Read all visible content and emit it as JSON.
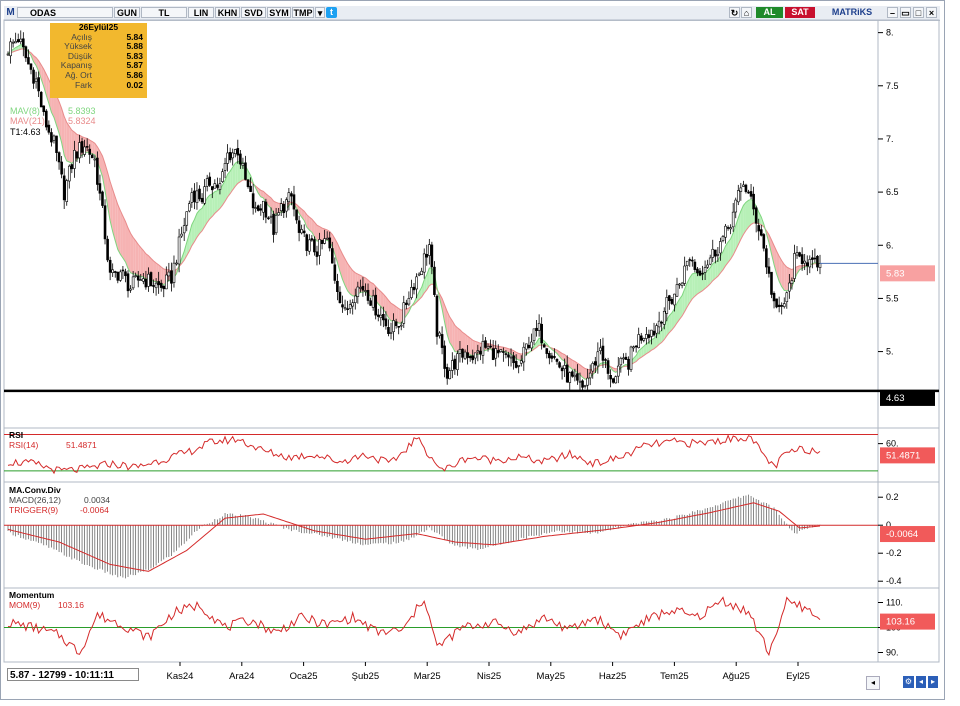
{
  "toolbar": {
    "logo": "M",
    "symbol": "ODAS",
    "period": "GUN",
    "currency": "TL",
    "scale": "LIN",
    "buttons": [
      "KHN",
      "SVD",
      "SYM",
      "TMP"
    ],
    "buy_label": "AL",
    "sell_label": "SAT",
    "brand": "MATRiKS"
  },
  "ohlc_box": {
    "date": "26Eylül25",
    "rows": [
      {
        "label": "Açılış",
        "value": "5.84"
      },
      {
        "label": "Yüksek",
        "value": "5.88"
      },
      {
        "label": "Düşük",
        "value": "5.83"
      },
      {
        "label": "Kapanış",
        "value": "5.87"
      },
      {
        "label": "Ağ. Ort",
        "value": "5.86"
      },
      {
        "label": "Fark",
        "value": "0.02"
      }
    ]
  },
  "status_bar": {
    "text": "5.87 - 12799 - 10:11:11"
  },
  "colors": {
    "up": "#000000",
    "down": "#000000",
    "band_up": "#b7f0b7",
    "band_down": "#f6b3b3",
    "mav_fast": "#7fd67f",
    "mav_slow": "#e88b8b",
    "rsi": "#d42a2a",
    "macd": "#000000",
    "trigger": "#d42a2a",
    "momentum": "#d42a2a",
    "ref_line": "#2a9d2a",
    "label_bg": "#f15a5a"
  },
  "chart_data": [
    {
      "type": "candlestick",
      "title": "ODAS",
      "x_tick_labels": [
        "Kas24",
        "Ara24",
        "Oca25",
        "Şub25",
        "Mar25",
        "Nis25",
        "May25",
        "Haz25",
        "Tem25",
        "Ağu25",
        "Eyl25"
      ],
      "y_ticks": [
        5,
        5.5,
        6,
        6.5,
        7,
        7.5,
        8
      ],
      "y_tick_labels": [
        "5.",
        "5.5",
        "6.",
        "6.5",
        "7.",
        "7.5",
        "8."
      ],
      "ylim": [
        4.3,
        8.1
      ],
      "series": [
        {
          "name": "MAV(8)",
          "last": "5.8393"
        },
        {
          "name": "MAV(21)",
          "last": "5.8324"
        }
      ],
      "horizontal_line": {
        "name": "T1",
        "value": 4.63,
        "label": "T1:4.63",
        "axis_label": "4.63"
      },
      "last_price": 5.83,
      "last_price_label": "5.83",
      "close_path": [
        [
          0,
          7.85
        ],
        [
          4,
          7.95
        ],
        [
          8,
          7.7
        ],
        [
          11,
          7.55
        ],
        [
          14,
          7.2
        ],
        [
          18,
          6.95
        ],
        [
          22,
          6.5
        ],
        [
          26,
          6.85
        ],
        [
          30,
          6.95
        ],
        [
          34,
          6.8
        ],
        [
          37,
          6.3
        ],
        [
          40,
          5.7
        ],
        [
          44,
          5.75
        ],
        [
          48,
          5.6
        ],
        [
          52,
          5.7
        ],
        [
          56,
          5.65
        ],
        [
          60,
          5.6
        ],
        [
          64,
          5.7
        ],
        [
          68,
          6.1
        ],
        [
          72,
          6.5
        ],
        [
          76,
          6.45
        ],
        [
          79,
          6.6
        ],
        [
          83,
          6.55
        ],
        [
          86,
          6.85
        ],
        [
          90,
          6.9
        ],
        [
          93,
          6.6
        ],
        [
          97,
          6.3
        ],
        [
          100,
          6.4
        ],
        [
          104,
          6.15
        ],
        [
          107,
          6.35
        ],
        [
          111,
          6.45
        ],
        [
          114,
          6.1
        ],
        [
          118,
          6.0
        ],
        [
          121,
          5.95
        ],
        [
          125,
          6.05
        ],
        [
          128,
          5.7
        ],
        [
          132,
          5.35
        ],
        [
          136,
          5.6
        ],
        [
          140,
          5.6
        ],
        [
          143,
          5.45
        ],
        [
          147,
          5.3
        ],
        [
          150,
          5.2
        ],
        [
          154,
          5.3
        ],
        [
          157,
          5.55
        ],
        [
          161,
          5.75
        ],
        [
          165,
          6.0
        ],
        [
          168,
          5.2
        ],
        [
          172,
          4.8
        ],
        [
          175,
          4.9
        ],
        [
          179,
          5.0
        ],
        [
          183,
          4.95
        ],
        [
          186,
          5.05
        ],
        [
          190,
          5.0
        ],
        [
          193,
          4.95
        ],
        [
          197,
          4.9
        ],
        [
          200,
          4.85
        ],
        [
          204,
          5.1
        ],
        [
          208,
          5.2
        ],
        [
          211,
          5.05
        ],
        [
          215,
          4.9
        ],
        [
          218,
          4.8
        ],
        [
          222,
          4.7
        ],
        [
          225,
          4.65
        ],
        [
          229,
          4.85
        ],
        [
          232,
          5.05
        ],
        [
          236,
          4.7
        ],
        [
          239,
          4.85
        ],
        [
          243,
          4.9
        ],
        [
          246,
          5.1
        ],
        [
          250,
          5.2
        ],
        [
          253,
          5.2
        ],
        [
          257,
          5.4
        ],
        [
          260,
          5.5
        ],
        [
          264,
          5.7
        ],
        [
          267,
          5.9
        ],
        [
          270,
          5.75
        ],
        [
          274,
          5.85
        ],
        [
          277,
          5.95
        ],
        [
          281,
          6.1
        ],
        [
          284,
          6.3
        ],
        [
          288,
          6.6
        ],
        [
          291,
          6.4
        ],
        [
          295,
          6.1
        ],
        [
          298,
          5.7
        ],
        [
          301,
          5.35
        ],
        [
          305,
          5.5
        ],
        [
          308,
          5.85
        ],
        [
          312,
          5.9
        ],
        [
          315,
          5.8
        ],
        [
          318,
          5.83
        ]
      ]
    },
    {
      "type": "line",
      "title": "RSI",
      "series": [
        {
          "name": "RSI(14)",
          "last": "51.4871"
        }
      ],
      "y_ticks": [
        60
      ],
      "y_tick_labels": [
        "60."
      ],
      "ylim": [
        20,
        75
      ],
      "reference_lines": [
        70,
        30
      ],
      "last_label": "51.4871",
      "path": [
        [
          0,
          40
        ],
        [
          10,
          38
        ],
        [
          20,
          30
        ],
        [
          30,
          32
        ],
        [
          40,
          38
        ],
        [
          50,
          34
        ],
        [
          60,
          42
        ],
        [
          70,
          50
        ],
        [
          80,
          62
        ],
        [
          90,
          65
        ],
        [
          100,
          52
        ],
        [
          110,
          45
        ],
        [
          120,
          48
        ],
        [
          130,
          40
        ],
        [
          140,
          48
        ],
        [
          150,
          38
        ],
        [
          160,
          66
        ],
        [
          170,
          30
        ],
        [
          180,
          45
        ],
        [
          190,
          42
        ],
        [
          200,
          45
        ],
        [
          210,
          40
        ],
        [
          220,
          48
        ],
        [
          230,
          38
        ],
        [
          240,
          45
        ],
        [
          250,
          58
        ],
        [
          260,
          62
        ],
        [
          270,
          60
        ],
        [
          280,
          64
        ],
        [
          290,
          68
        ],
        [
          300,
          34
        ],
        [
          305,
          50
        ],
        [
          312,
          54
        ],
        [
          318,
          51.49
        ]
      ]
    },
    {
      "type": "bar+line",
      "title": "MA.Conv.Div",
      "series": [
        {
          "name": "MACD(26,12)",
          "last": "0.0034"
        },
        {
          "name": "TRIGGER(9)",
          "last": "-0.0064"
        }
      ],
      "y_ticks": [
        0.2,
        0,
        -0.2,
        -0.4
      ],
      "y_tick_labels": [
        "0.2",
        "0",
        "-0.2",
        "-0.4"
      ],
      "ylim": [
        -0.42,
        0.28
      ],
      "last_label": "-0.0064",
      "macd_path": [
        [
          0,
          -0.05
        ],
        [
          15,
          -0.15
        ],
        [
          30,
          -0.28
        ],
        [
          45,
          -0.38
        ],
        [
          55,
          -0.32
        ],
        [
          65,
          -0.2
        ],
        [
          75,
          -0.02
        ],
        [
          85,
          0.08
        ],
        [
          95,
          0.06
        ],
        [
          110,
          -0.03
        ],
        [
          125,
          -0.08
        ],
        [
          140,
          -0.14
        ],
        [
          155,
          -0.12
        ],
        [
          165,
          -0.02
        ],
        [
          175,
          -0.15
        ],
        [
          185,
          -0.17
        ],
        [
          200,
          -0.1
        ],
        [
          215,
          -0.04
        ],
        [
          230,
          -0.06
        ],
        [
          245,
          0.01
        ],
        [
          260,
          0.05
        ],
        [
          275,
          0.13
        ],
        [
          290,
          0.22
        ],
        [
          300,
          0.12
        ],
        [
          308,
          -0.06
        ],
        [
          318,
          0.003
        ]
      ],
      "trigger_path": [
        [
          0,
          -0.03
        ],
        [
          20,
          -0.12
        ],
        [
          40,
          -0.28
        ],
        [
          55,
          -0.33
        ],
        [
          70,
          -0.18
        ],
        [
          85,
          0.05
        ],
        [
          100,
          0.08
        ],
        [
          120,
          -0.04
        ],
        [
          140,
          -0.1
        ],
        [
          160,
          -0.06
        ],
        [
          175,
          -0.12
        ],
        [
          190,
          -0.14
        ],
        [
          210,
          -0.08
        ],
        [
          235,
          -0.03
        ],
        [
          255,
          0.02
        ],
        [
          275,
          0.09
        ],
        [
          292,
          0.16
        ],
        [
          302,
          0.1
        ],
        [
          310,
          -0.02
        ],
        [
          318,
          -0.006
        ]
      ]
    },
    {
      "type": "line",
      "title": "Momentum",
      "series": [
        {
          "name": "MOM(9)",
          "last": "103.16"
        }
      ],
      "y_ticks": [
        110,
        100,
        90
      ],
      "y_tick_labels": [
        "110.",
        "100",
        "90."
      ],
      "ylim": [
        87,
        115
      ],
      "reference_lines": [
        100
      ],
      "last_label": "103.16",
      "path": [
        [
          0,
          102
        ],
        [
          10,
          100
        ],
        [
          20,
          97
        ],
        [
          28,
          90
        ],
        [
          35,
          105
        ],
        [
          45,
          101
        ],
        [
          55,
          96
        ],
        [
          65,
          106
        ],
        [
          75,
          109
        ],
        [
          85,
          100
        ],
        [
          95,
          103
        ],
        [
          105,
          98
        ],
        [
          115,
          104
        ],
        [
          125,
          101
        ],
        [
          135,
          104
        ],
        [
          145,
          98
        ],
        [
          155,
          99
        ],
        [
          163,
          112
        ],
        [
          168,
          92
        ],
        [
          178,
          100
        ],
        [
          190,
          102
        ],
        [
          200,
          98
        ],
        [
          210,
          104
        ],
        [
          220,
          99
        ],
        [
          230,
          104
        ],
        [
          240,
          97
        ],
        [
          250,
          103
        ],
        [
          260,
          107
        ],
        [
          270,
          104
        ],
        [
          280,
          111
        ],
        [
          290,
          106
        ],
        [
          298,
          90
        ],
        [
          305,
          110
        ],
        [
          312,
          108
        ],
        [
          318,
          103.16
        ]
      ]
    }
  ]
}
